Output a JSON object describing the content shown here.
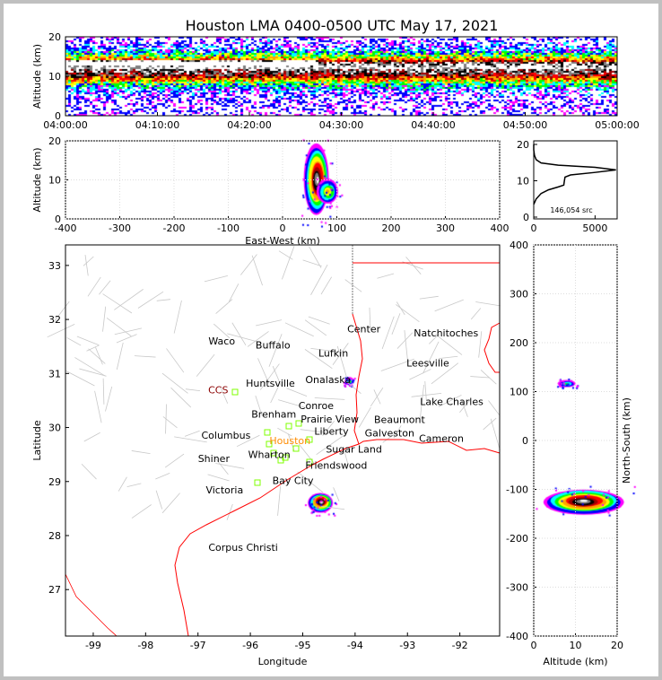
{
  "title": "Houston LMA 0400-0500 UTC May 17, 2021",
  "colors": {
    "density": [
      "#ff00ff",
      "#0000ff",
      "#00ffff",
      "#00ff00",
      "#ffff00",
      "#ffa500",
      "#ff0000",
      "#a00000",
      "#000000",
      "#808080",
      "#ffffff"
    ],
    "coast": "#ff0000",
    "county": "#c8c8c8",
    "station": "#7fff00",
    "houston": "#ff8c00",
    "ccs": "#8b0000"
  },
  "chart_data": [
    {
      "id": "time-height",
      "type": "heatmap",
      "ylabel": "Altitude (km)",
      "xlabel": "",
      "xticks": [
        "04:00:00",
        "04:10:00",
        "04:20:00",
        "04:30:00",
        "04:40:00",
        "04:50:00",
        "05:00:00"
      ],
      "yticks": [
        0,
        10,
        20
      ],
      "ylim": [
        0,
        20
      ],
      "description_values": {
        "core_altitude_km": 12.5,
        "source_altitude_range_km": [
          4,
          18
        ]
      }
    },
    {
      "id": "east-west-altitude",
      "type": "heatmap",
      "xlabel": "East-West (km)",
      "ylabel": "Altitude (km)",
      "xlim": [
        -400,
        400
      ],
      "ylim": [
        0,
        20
      ],
      "xticks": [
        -400,
        -300,
        -200,
        -100,
        0,
        100,
        200,
        300,
        400
      ],
      "yticks": [
        0,
        10,
        20
      ],
      "clusters": [
        {
          "x_km": 70,
          "alt_range_km": [
            1,
            20
          ],
          "core_alt_km": 12
        }
      ]
    },
    {
      "id": "altitude-histogram",
      "type": "line",
      "xlim": [
        0,
        6800
      ],
      "ylim": [
        0,
        20
      ],
      "xticks": [
        0,
        5000
      ],
      "yticks": [
        0,
        10,
        20
      ],
      "annotation": "146,054 src",
      "points": [
        [
          0,
          3.5
        ],
        [
          200,
          5
        ],
        [
          600,
          6.5
        ],
        [
          1200,
          7.5
        ],
        [
          2000,
          8.3
        ],
        [
          2450,
          8.8
        ],
        [
          2500,
          10
        ],
        [
          2550,
          11
        ],
        [
          3000,
          11.6
        ],
        [
          5000,
          12.3
        ],
        [
          6700,
          13
        ],
        [
          5000,
          13.7
        ],
        [
          2000,
          14.3
        ],
        [
          600,
          14.9
        ],
        [
          200,
          15.8
        ],
        [
          60,
          17
        ],
        [
          0,
          18.5
        ],
        [
          0,
          20
        ]
      ]
    },
    {
      "id": "plan-view",
      "type": "scatter",
      "xlabel": "Longitude",
      "ylabel": "Latitude",
      "xlim": [
        -99.53,
        -91.24
      ],
      "ylim": [
        26.14,
        33.38
      ],
      "xticks": [
        -99,
        -98,
        -97,
        -96,
        -95,
        -94,
        -93,
        -92
      ],
      "yticks": [
        27,
        28,
        29,
        30,
        31,
        32,
        33
      ],
      "clusters": [
        {
          "lon": -94.65,
          "lat": 28.62,
          "size": "large"
        },
        {
          "lon": -94.12,
          "lat": 30.86,
          "size": "small"
        }
      ],
      "cities": [
        {
          "name": "Waco",
          "lon": -96.8,
          "lat": 31.6
        },
        {
          "name": "Buffalo",
          "lon": -95.9,
          "lat": 31.53
        },
        {
          "name": "Lufkin",
          "lon": -94.7,
          "lat": 31.38
        },
        {
          "name": "Center",
          "lon": -94.15,
          "lat": 31.83
        },
        {
          "name": "Natchitoches",
          "lon": -92.88,
          "lat": 31.75
        },
        {
          "name": "Leesville",
          "lon": -93.02,
          "lat": 31.2
        },
        {
          "name": "Onalaska",
          "lon": -94.95,
          "lat": 30.89
        },
        {
          "name": "Huntsville",
          "lon": -95.4,
          "lat": 30.82
        },
        {
          "name": "CCS",
          "lon": -96.12,
          "lat": 30.7
        },
        {
          "name": "Conroe",
          "lon": -95.08,
          "lat": 30.41
        },
        {
          "name": "Brenham",
          "lon": -95.98,
          "lat": 30.25
        },
        {
          "name": "Prairie View",
          "lon": -95.38,
          "lat": 30.16
        },
        {
          "name": "Liberty",
          "lon": -94.78,
          "lat": 30.13
        },
        {
          "name": "Beaumont",
          "lon": -93.98,
          "lat": 30.15
        },
        {
          "name": "Lake Charles",
          "lon": -92.76,
          "lat": 30.28
        },
        {
          "name": "Houston",
          "lon": -94.95,
          "lat": 29.96
        },
        {
          "name": "Columbus",
          "lon": -96.25,
          "lat": 29.86
        },
        {
          "name": "Sugar Land",
          "lon": -94.9,
          "lat": 29.8
        },
        {
          "name": "Friendswood",
          "lon": -94.95,
          "lat": 29.7
        },
        {
          "name": "Galveston",
          "lon": -94.5,
          "lat": 29.5
        },
        {
          "name": "Cameron",
          "lon": -92.78,
          "lat": 29.8
        },
        {
          "name": "Shiner",
          "lon": -97.0,
          "lat": 29.43
        },
        {
          "name": "Wharton",
          "lon": -95.7,
          "lat": 29.5
        },
        {
          "name": "Bay City",
          "lon": -95.58,
          "lat": 29.02
        },
        {
          "name": "Victoria",
          "lon": -96.85,
          "lat": 28.85
        },
        {
          "name": "Corpus Christi",
          "lon": -96.8,
          "lat": 27.78
        }
      ]
    },
    {
      "id": "altitude-north-south",
      "type": "heatmap",
      "xlabel": "Altitude (km)",
      "ylabel": "North-South (km)",
      "xlim": [
        0,
        20
      ],
      "ylim": [
        -400,
        400
      ],
      "xticks": [
        0,
        10,
        20
      ],
      "yticks": [
        -400,
        -300,
        -200,
        -100,
        0,
        100,
        200,
        300,
        400
      ],
      "clusters": [
        {
          "ns_km": -125,
          "alt_range_km": [
            2,
            20
          ],
          "core_alt_km": 12
        },
        {
          "ns_km": 117,
          "alt_range_km": [
            1,
            11
          ],
          "core_alt_km": 8
        }
      ]
    }
  ]
}
